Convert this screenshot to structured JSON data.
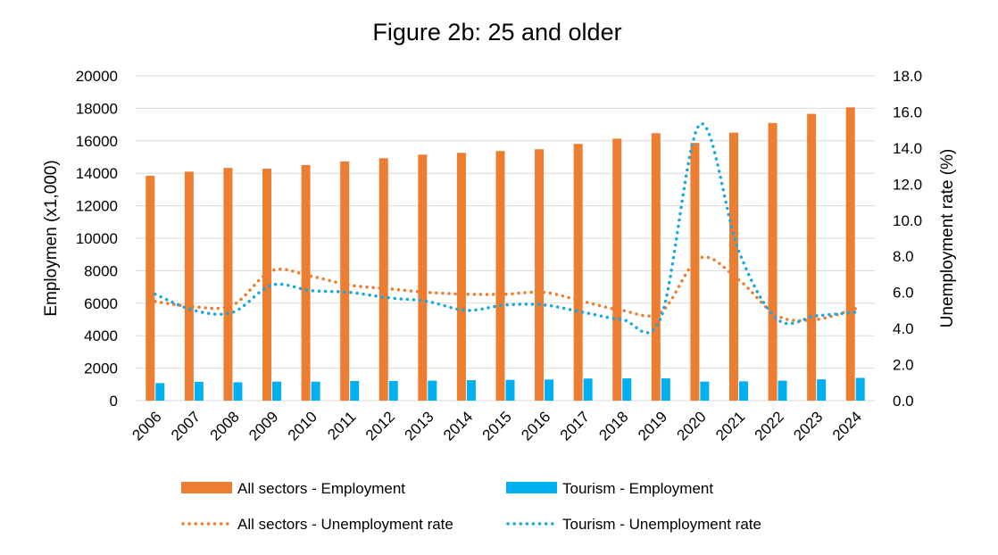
{
  "chart_data": {
    "type": "bar",
    "title": "Figure 2b: 25 and older",
    "ylabel": "Employmen (x1,000)",
    "y2label": "Unemployment rate (%)",
    "xlabel": "",
    "ylim": [
      0,
      20000
    ],
    "y2lim": [
      0,
      18
    ],
    "yticks": [
      "0",
      "2000",
      "4000",
      "6000",
      "8000",
      "10000",
      "12000",
      "14000",
      "16000",
      "18000",
      "20000"
    ],
    "y2ticks": [
      "0.0",
      "2.0",
      "4.0",
      "6.0",
      "8.0",
      "10.0",
      "12.0",
      "14.0",
      "16.0",
      "18.0"
    ],
    "grid": true,
    "legend_position": "bottom",
    "categories": [
      "2006",
      "2007",
      "2008",
      "2009",
      "2010",
      "2011",
      "2012",
      "2013",
      "2014",
      "2015",
      "2016",
      "2017",
      "2018",
      "2019",
      "2020",
      "2021",
      "2022",
      "2023",
      "2024"
    ],
    "series": [
      {
        "name": "All sectors - Employment",
        "kind": "bar",
        "axis": "left",
        "color": "#ED7D31",
        "values": [
          13850,
          14100,
          14330,
          14280,
          14510,
          14730,
          14930,
          15150,
          15260,
          15370,
          15480,
          15810,
          16130,
          16470,
          15870,
          16500,
          17100,
          17660,
          18060
        ]
      },
      {
        "name": "Tourism - Employment",
        "kind": "bar",
        "axis": "left",
        "color": "#00B0F0",
        "values": [
          1080,
          1160,
          1130,
          1170,
          1170,
          1210,
          1210,
          1230,
          1260,
          1280,
          1300,
          1360,
          1370,
          1370,
          1170,
          1190,
          1230,
          1310,
          1400
        ]
      },
      {
        "name": "All sectors - Unemployment rate",
        "kind": "line",
        "style": "dotted",
        "axis": "right",
        "color": "#ED7D31",
        "values": [
          5.5,
          5.2,
          5.3,
          7.2,
          6.9,
          6.4,
          6.2,
          6.0,
          5.9,
          5.9,
          6.0,
          5.5,
          5.0,
          4.9,
          7.9,
          6.7,
          4.7,
          4.5,
          5.1
        ]
      },
      {
        "name": "Tourism - Unemployment rate",
        "kind": "line",
        "style": "dotted",
        "axis": "right",
        "color": "#1BA8E0",
        "values": [
          5.9,
          5.0,
          4.9,
          6.4,
          6.1,
          6.0,
          5.7,
          5.5,
          5.0,
          5.3,
          5.3,
          4.9,
          4.5,
          4.6,
          15.3,
          8.3,
          4.5,
          4.7,
          4.9
        ]
      }
    ]
  }
}
